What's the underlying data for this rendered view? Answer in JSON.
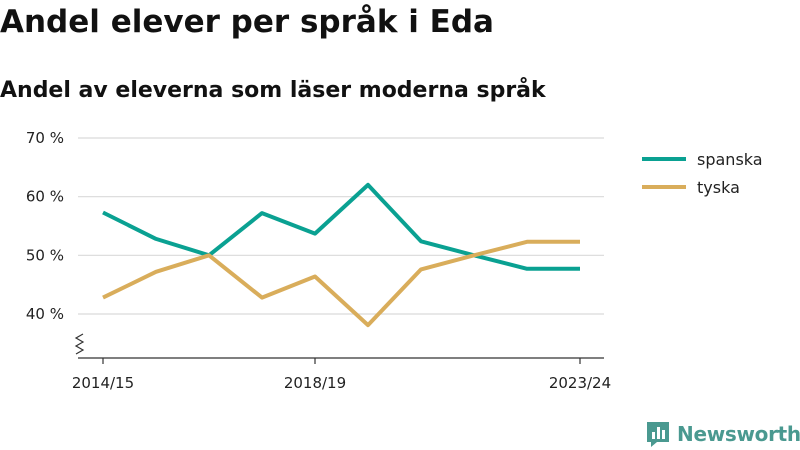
{
  "header": {
    "title": "Andel elever per språk i Eda",
    "subtitle": "Andel av eleverna som läser moderna språk"
  },
  "brand": {
    "name": "Newsworthy",
    "icon": "bar-chart-badge-icon",
    "color": "#4a9990"
  },
  "chart_data": {
    "type": "line",
    "x": [
      "2014/15",
      "2015/16",
      "2016/17",
      "2017/18",
      "2018/19",
      "2019/20",
      "2020/21",
      "2021/22",
      "2022/23",
      "2023/24"
    ],
    "x_tick_labels": [
      "2014/15",
      "2018/19",
      "2023/24"
    ],
    "y_ticks": [
      40,
      50,
      60,
      70
    ],
    "y_tick_labels": [
      "40 %",
      "50 %",
      "60 %",
      "70 %"
    ],
    "ylim": [
      32,
      70
    ],
    "y_axis_break": true,
    "grid": "horizontal",
    "legend_position": "right",
    "series": [
      {
        "name": "spanska",
        "color": "#0aa192",
        "values": [
          57.3,
          52.8,
          50.0,
          57.2,
          53.7,
          62.0,
          52.4,
          50.0,
          47.7,
          47.7
        ]
      },
      {
        "name": "tyska",
        "color": "#d9ad5b",
        "values": [
          42.8,
          47.2,
          50.0,
          42.8,
          46.4,
          38.1,
          47.6,
          50.0,
          52.3,
          52.3
        ]
      }
    ]
  }
}
